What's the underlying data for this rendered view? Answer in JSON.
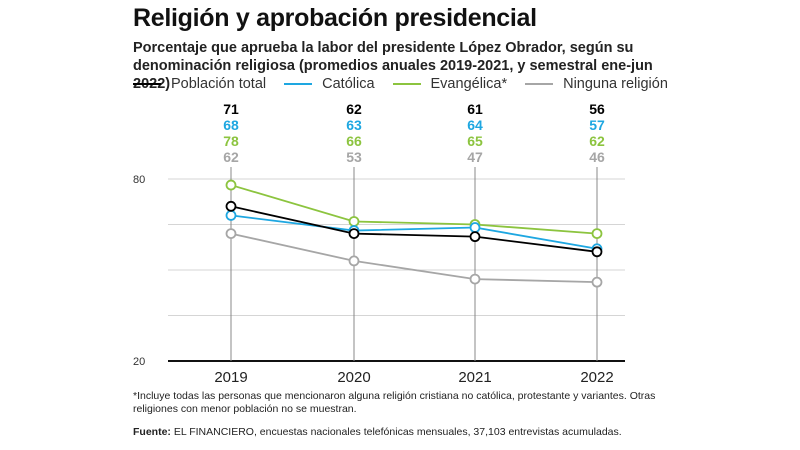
{
  "title": "Religión y aprobación presidencial",
  "subtitle": "Porcentaje que aprueba la labor del presidente López Obrador, según su denominación religiosa (promedios anuales 2019-2021, y semestral ene-jun 2022)",
  "footnote": "*Incluye todas las personas que mencionaron alguna religión cristiana no católica, protestante y variantes. Otras religiones con menor población no se muestran.",
  "source_label": "Fuente:",
  "source": "EL FINANCIERO, encuestas nacionales telefónicas mensuales, 37,103 entrevistas acumuladas.",
  "chart_data": {
    "type": "line",
    "title": "Religión y aprobación presidencial",
    "x": [
      "2019",
      "2020",
      "2021",
      "2022"
    ],
    "ylim": [
      20,
      80
    ],
    "yticks": [
      20,
      35,
      50,
      65,
      80
    ],
    "ytick_labels": [
      "20",
      "80"
    ],
    "grid": true,
    "legend": "top",
    "series": [
      {
        "name": "Población total",
        "color": "#000000",
        "values": [
          71,
          62,
          61,
          56
        ]
      },
      {
        "name": "Católica",
        "color": "#1ea7e1",
        "values": [
          68,
          63,
          64,
          57
        ]
      },
      {
        "name": "Evangélica*",
        "color": "#8cc43f",
        "values": [
          78,
          66,
          65,
          62
        ]
      },
      {
        "name": "Ninguna religión",
        "color": "#a6a6a6",
        "values": [
          62,
          53,
          47,
          46
        ]
      }
    ]
  }
}
